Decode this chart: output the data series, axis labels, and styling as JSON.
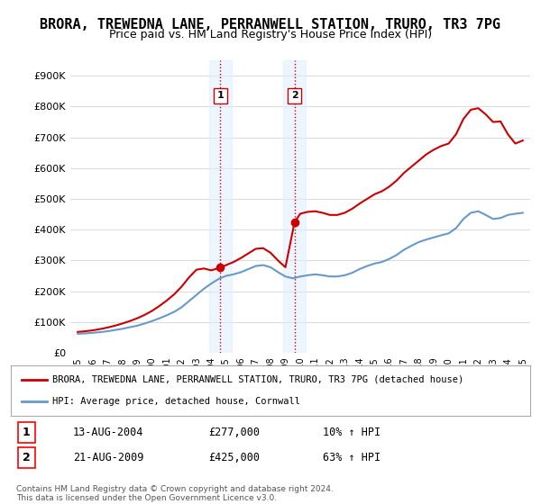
{
  "title": "BRORA, TREWEDNA LANE, PERRANWELL STATION, TRURO, TR3 7PG",
  "subtitle": "Price paid vs. HM Land Registry's House Price Index (HPI)",
  "title_fontsize": 11,
  "subtitle_fontsize": 9,
  "ylabel_ticks": [
    "£0",
    "£100K",
    "£200K",
    "£300K",
    "£400K",
    "£500K",
    "£600K",
    "£700K",
    "£800K",
    "£900K"
  ],
  "ytick_values": [
    0,
    100000,
    200000,
    300000,
    400000,
    500000,
    600000,
    700000,
    800000,
    900000
  ],
  "ylim": [
    0,
    950000
  ],
  "xlim_start": 1994.5,
  "xlim_end": 2025.5,
  "background_color": "#ffffff",
  "grid_color": "#dddddd",
  "hpi_line_color": "#6699cc",
  "price_line_color": "#cc0000",
  "shade_color": "#ddeeff",
  "shade_alpha": 0.5,
  "vline_color": "#cc0000",
  "vline_style": ":",
  "transaction1_x": 2004.617,
  "transaction1_y": 277000,
  "transaction1_label": "1",
  "transaction1_date": "13-AUG-2004",
  "transaction1_price": "£277,000",
  "transaction1_hpi": "10% ↑ HPI",
  "transaction2_x": 2009.617,
  "transaction2_y": 425000,
  "transaction2_label": "2",
  "transaction2_date": "21-AUG-2009",
  "transaction2_price": "£425,000",
  "transaction2_hpi": "63% ↑ HPI",
  "legend_line1": "BRORA, TREWEDNA LANE, PERRANWELL STATION, TRURO, TR3 7PG (detached house)",
  "legend_line2": "HPI: Average price, detached house, Cornwall",
  "footer1": "Contains HM Land Registry data © Crown copyright and database right 2024.",
  "footer2": "This data is licensed under the Open Government Licence v3.0.",
  "hpi_x": [
    1995,
    1995.5,
    1996,
    1996.5,
    1997,
    1997.5,
    1998,
    1998.5,
    1999,
    1999.5,
    2000,
    2000.5,
    2001,
    2001.5,
    2002,
    2002.5,
    2003,
    2003.5,
    2004,
    2004.5,
    2005,
    2005.5,
    2006,
    2006.5,
    2007,
    2007.5,
    2008,
    2008.5,
    2009,
    2009.5,
    2010,
    2010.5,
    2011,
    2011.5,
    2012,
    2012.5,
    2013,
    2013.5,
    2014,
    2014.5,
    2015,
    2015.5,
    2016,
    2016.5,
    2017,
    2017.5,
    2018,
    2018.5,
    2019,
    2019.5,
    2020,
    2020.5,
    2021,
    2021.5,
    2022,
    2022.5,
    2023,
    2023.5,
    2024,
    2024.5,
    2025
  ],
  "hpi_y": [
    62000,
    63000,
    65000,
    67000,
    70000,
    74000,
    78000,
    83000,
    88000,
    95000,
    103000,
    112000,
    122000,
    133000,
    148000,
    168000,
    188000,
    208000,
    225000,
    240000,
    250000,
    255000,
    262000,
    272000,
    282000,
    285000,
    278000,
    262000,
    248000,
    242000,
    248000,
    252000,
    255000,
    252000,
    248000,
    248000,
    252000,
    260000,
    272000,
    282000,
    290000,
    295000,
    305000,
    318000,
    335000,
    348000,
    360000,
    368000,
    375000,
    382000,
    388000,
    405000,
    435000,
    455000,
    460000,
    448000,
    435000,
    438000,
    448000,
    452000,
    455000
  ],
  "price_x": [
    1995,
    1995.5,
    1996,
    1996.5,
    1997,
    1997.5,
    1998,
    1998.5,
    1999,
    1999.5,
    2000,
    2000.5,
    2001,
    2001.5,
    2002,
    2002.5,
    2003,
    2003.5,
    2004,
    2004.617,
    2005,
    2005.5,
    2006,
    2006.5,
    2007,
    2007.5,
    2008,
    2008.5,
    2009,
    2009.617,
    2010,
    2010.5,
    2011,
    2011.5,
    2012,
    2012.5,
    2013,
    2013.5,
    2014,
    2014.5,
    2015,
    2015.5,
    2016,
    2016.5,
    2017,
    2017.5,
    2018,
    2018.5,
    2019,
    2019.5,
    2020,
    2020.5,
    2021,
    2021.5,
    2022,
    2022.5,
    2023,
    2023.5,
    2024,
    2024.5,
    2025
  ],
  "price_y": [
    68000,
    70000,
    73000,
    77000,
    82000,
    88000,
    95000,
    103000,
    112000,
    123000,
    136000,
    152000,
    170000,
    190000,
    215000,
    245000,
    270000,
    274000,
    268000,
    277000,
    285000,
    295000,
    308000,
    323000,
    338000,
    340000,
    325000,
    300000,
    278000,
    425000,
    452000,
    458000,
    460000,
    455000,
    448000,
    448000,
    455000,
    468000,
    485000,
    500000,
    515000,
    525000,
    540000,
    560000,
    585000,
    605000,
    625000,
    645000,
    660000,
    672000,
    680000,
    710000,
    760000,
    790000,
    795000,
    775000,
    750000,
    752000,
    710000,
    680000,
    690000
  ],
  "xticks": [
    1995,
    1996,
    1997,
    1998,
    1999,
    2000,
    2001,
    2002,
    2003,
    2004,
    2005,
    2006,
    2007,
    2008,
    2009,
    2010,
    2011,
    2012,
    2013,
    2014,
    2015,
    2016,
    2017,
    2018,
    2019,
    2020,
    2021,
    2022,
    2023,
    2024,
    2025
  ]
}
